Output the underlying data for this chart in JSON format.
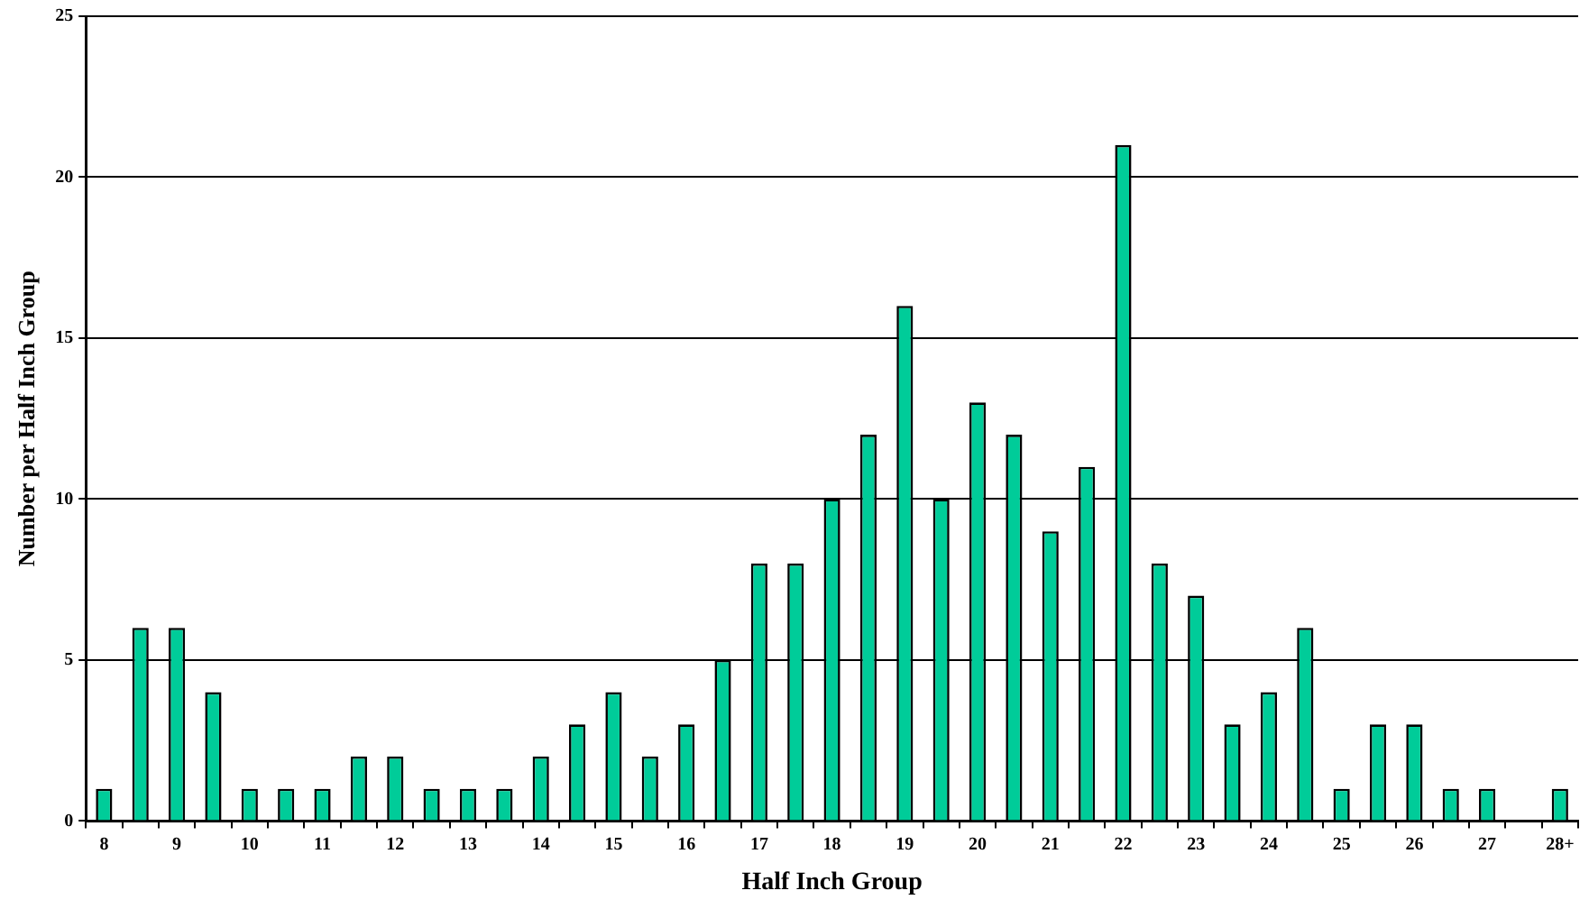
{
  "chart_data": {
    "type": "bar",
    "xlabel": "Half Inch Group",
    "ylabel": "Number per Half Inch Group",
    "categories": [
      "8",
      null,
      "9",
      null,
      "10",
      null,
      "11",
      null,
      "12",
      null,
      "13",
      null,
      "14",
      null,
      "15",
      null,
      "16",
      null,
      "17",
      null,
      "18",
      null,
      "19",
      null,
      "20",
      null,
      "21",
      null,
      "22",
      null,
      "23",
      null,
      "24",
      null,
      "25",
      null,
      "26",
      null,
      "27",
      null,
      "28+"
    ],
    "values": [
      1,
      6,
      6,
      4,
      1,
      1,
      1,
      2,
      2,
      1,
      1,
      1,
      2,
      3,
      4,
      2,
      3,
      5,
      8,
      8,
      10,
      12,
      16,
      10,
      13,
      12,
      9,
      11,
      21,
      8,
      7,
      3,
      4,
      6,
      1,
      3,
      3,
      1,
      1,
      0,
      1
    ],
    "color": "#00cc99",
    "ylim": [
      0,
      25
    ],
    "yticks": [
      0,
      5,
      10,
      15,
      20,
      25
    ],
    "grid": "y",
    "legend": false
  }
}
